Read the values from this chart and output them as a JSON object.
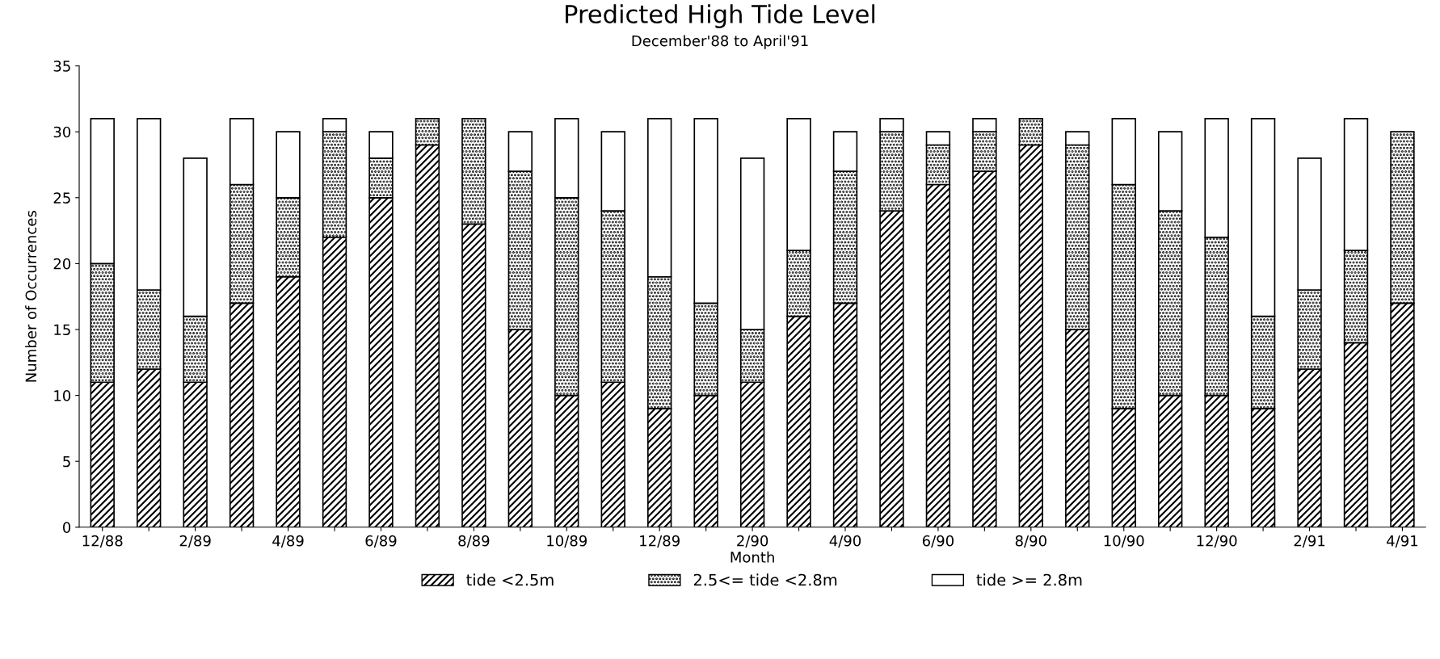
{
  "chart_data": {
    "type": "bar",
    "title": "Predicted High Tide Level",
    "subtitle": "December'88 to April'91",
    "xlabel": "Month",
    "ylabel": "Number of Occurrences",
    "categories": [
      "12/88",
      null,
      "2/89",
      null,
      "4/89",
      null,
      "6/89",
      null,
      "8/89",
      null,
      "10/89",
      null,
      "12/89",
      null,
      "2/90",
      null,
      "4/90",
      null,
      "6/90",
      null,
      "8/90",
      null,
      "10/90",
      null,
      "12/90",
      null,
      "2/91",
      null,
      "4/91"
    ],
    "stacked": true,
    "ylim": [
      0,
      35
    ],
    "yticks": [
      0,
      5,
      10,
      15,
      20,
      25,
      30,
      35
    ],
    "grid": false,
    "legend": "bottom",
    "series": [
      {
        "name": "tide <2.5m",
        "color": "#000000",
        "values": [
          11,
          12,
          11,
          17,
          19,
          22,
          25,
          29,
          23,
          15,
          10,
          11,
          9,
          10,
          11,
          16,
          17,
          24,
          26,
          27,
          29,
          15,
          9,
          10,
          10,
          9,
          12,
          14,
          17
        ]
      },
      {
        "name": "2.5<= tide <2.8m",
        "color": "#000000",
        "values": [
          9,
          6,
          5,
          9,
          6,
          8,
          3,
          2,
          8,
          12,
          15,
          13,
          10,
          7,
          4,
          5,
          10,
          6,
          3,
          3,
          2,
          14,
          17,
          14,
          12,
          7,
          6,
          7,
          13
        ]
      },
      {
        "name": "tide >= 2.8m",
        "color": "#ffffff",
        "values": [
          11,
          13,
          12,
          5,
          5,
          1,
          2,
          0,
          0,
          3,
          6,
          6,
          12,
          14,
          13,
          10,
          3,
          1,
          1,
          1,
          0,
          1,
          5,
          6,
          9,
          15,
          10,
          10,
          0
        ]
      }
    ]
  }
}
